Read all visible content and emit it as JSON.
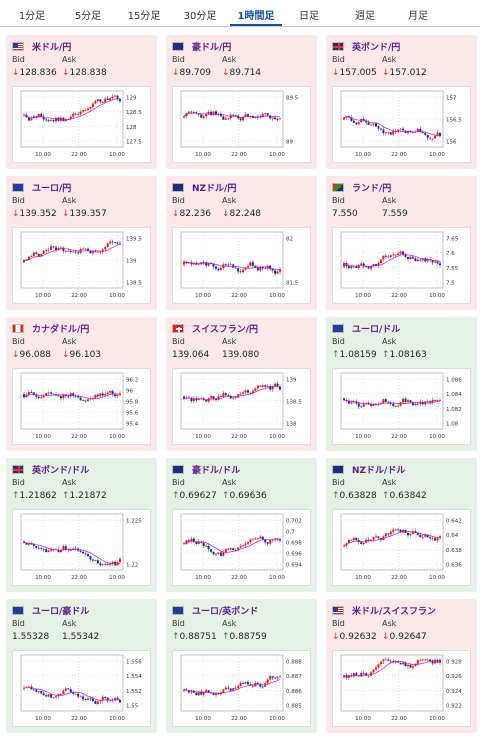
{
  "tabs": [
    "1分足",
    "5分足",
    "15分足",
    "30分足",
    "1時間足",
    "日足",
    "週足",
    "月足"
  ],
  "active_tab": 4,
  "labels": {
    "bid": "Bid",
    "ask": "Ask",
    "down_arrow": "↓",
    "up_arrow": "↑"
  },
  "cards": [
    {
      "pair": "米ドル/円",
      "flag": "us",
      "dir": "down",
      "bid": "128.836",
      "ask": "128.838",
      "y_ticks": [
        "129",
        "128.5",
        "128",
        "127.5"
      ],
      "x_ticks": [
        "10:00",
        "22:00",
        "10:00"
      ]
    },
    {
      "pair": "豪ドル/円",
      "flag": "au",
      "dir": "down",
      "bid": "89.709",
      "ask": "89.714",
      "y_ticks": [
        "89.5",
        "89"
      ],
      "x_ticks": [
        "10:00",
        "22:00",
        "10:00"
      ]
    },
    {
      "pair": "英ポンド/円",
      "flag": "gb",
      "dir": "down",
      "bid": "157.005",
      "ask": "157.012",
      "y_ticks": [
        "157",
        "156.5",
        "156"
      ],
      "x_ticks": [
        "10:00",
        "22:00",
        "10:00"
      ]
    },
    {
      "pair": "ユーロ/円",
      "flag": "eu",
      "dir": "down",
      "bid": "139.352",
      "ask": "139.357",
      "y_ticks": [
        "139.5",
        "139",
        "138.5"
      ],
      "x_ticks": [
        "10:00",
        "22:00",
        "10:00"
      ]
    },
    {
      "pair": "NZドル/円",
      "flag": "nz",
      "dir": "down",
      "bid": "82.236",
      "ask": "82.248",
      "y_ticks": [
        "82",
        "81.5"
      ],
      "x_ticks": [
        "10:00",
        "22:00",
        "10:00"
      ]
    },
    {
      "pair": "ランド/円",
      "flag": "za",
      "dir": "none",
      "bid": "7.550",
      "ask": "7.559",
      "y_ticks": [
        "7.65",
        "7.6",
        "7.55",
        "7.5"
      ],
      "x_ticks": [
        "10:00",
        "22:00",
        "10:00"
      ]
    },
    {
      "pair": "カナダドル/円",
      "flag": "ca",
      "dir": "down",
      "bid": "96.088",
      "ask": "96.103",
      "y_ticks": [
        "96.2",
        "96",
        "95.8",
        "95.6",
        "95.4"
      ],
      "x_ticks": [
        "10:00",
        "22:00",
        "10:00"
      ]
    },
    {
      "pair": "スイスフラン/円",
      "flag": "ch",
      "dir": "none",
      "bid": "139.064",
      "ask": "139.080",
      "y_ticks": [
        "139",
        "138.5",
        "138"
      ],
      "x_ticks": [
        "10:00",
        "22:00",
        "10:00"
      ]
    },
    {
      "pair": "ユーロ/ドル",
      "flag": "eu",
      "dir": "up",
      "bid": "1.08159",
      "ask": "1.08163",
      "y_ticks": [
        "1.086",
        "1.084",
        "1.082",
        "1.08"
      ],
      "x_ticks": [
        "10:00",
        "22:00",
        "10:00"
      ]
    },
    {
      "pair": "英ポンド/ドル",
      "flag": "gb",
      "dir": "up",
      "bid": "1.21862",
      "ask": "1.21872",
      "y_ticks": [
        "1.225",
        "1.22"
      ],
      "x_ticks": [
        "10:00",
        "22:00",
        "10:00"
      ]
    },
    {
      "pair": "豪ドル/ドル",
      "flag": "au",
      "dir": "up",
      "bid": "0.69627",
      "ask": "0.69636",
      "y_ticks": [
        "0.702",
        "0.7",
        "0.698",
        "0.696",
        "0.694"
      ],
      "x_ticks": [
        "10:00",
        "22:00",
        "10:00"
      ]
    },
    {
      "pair": "NZドル/ドル",
      "flag": "nz",
      "dir": "up",
      "bid": "0.63828",
      "ask": "0.63842",
      "y_ticks": [
        "0.642",
        "0.64",
        "0.638",
        "0.636"
      ],
      "x_ticks": [
        "10:00",
        "22:00",
        "10:00"
      ]
    },
    {
      "pair": "ユーロ/豪ドル",
      "flag": "eu",
      "dir": "none",
      "bid": "1.55328",
      "ask": "1.55342",
      "y_ticks": [
        "1.556",
        "1.554",
        "1.552",
        "1.55"
      ],
      "x_ticks": [
        "10:00",
        "22:00",
        "10:00"
      ]
    },
    {
      "pair": "ユーロ/英ポンド",
      "flag": "eu",
      "dir": "up",
      "bid": "0.88751",
      "ask": "0.88759",
      "y_ticks": [
        "0.888",
        "0.887",
        "0.886",
        "0.885"
      ],
      "x_ticks": [
        "10:00",
        "22:00",
        "10:00"
      ]
    },
    {
      "pair": "米ドル/スイスフラン",
      "flag": "us",
      "dir": "down",
      "bid": "0.92632",
      "ask": "0.92647",
      "y_ticks": [
        "0.928",
        "0.926",
        "0.924",
        "0.922"
      ],
      "x_ticks": [
        "10:00",
        "22:00",
        "10:00"
      ]
    }
  ],
  "colors": {
    "red_bg": "#fbe9ea",
    "green_bg": "#e6f1e6",
    "bull": "#e02020",
    "bear": "#1a2f9a",
    "ma": "#c020c0",
    "active_tab": "#1a4f9c",
    "title": "#5a1b8b"
  }
}
